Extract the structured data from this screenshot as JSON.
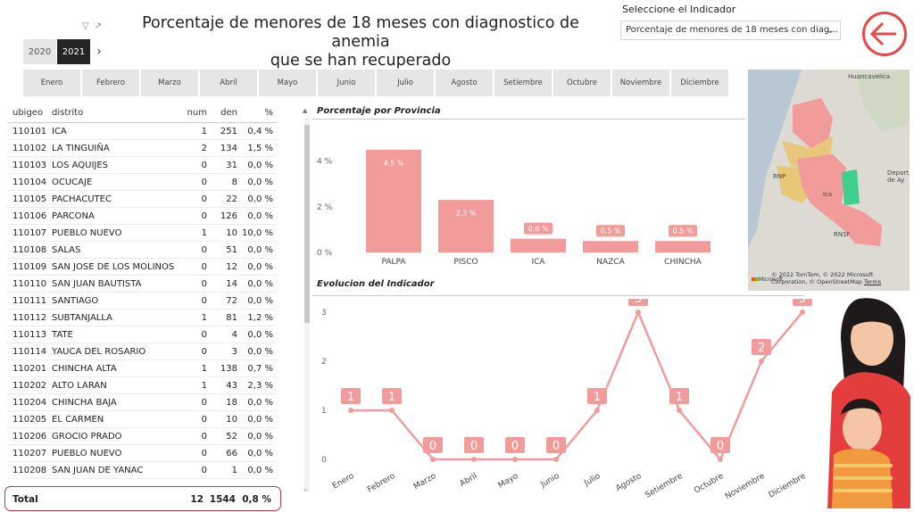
{
  "header": {
    "title_line1": "Porcentaje de menores de 18 meses con diagnostico de anemia",
    "title_line2": "que se han recuperado"
  },
  "years": {
    "options": [
      "2020",
      "2021"
    ],
    "selected": "2021"
  },
  "months": [
    "Enero",
    "Febrero",
    "Marzo",
    "Abril",
    "Mayo",
    "Junio",
    "Julio",
    "Agosto",
    "Setiembre",
    "Octubre",
    "Noviembre",
    "Diciembre"
  ],
  "indicator": {
    "label": "Seleccione el Indicador",
    "value": "Porcentaje de menores de 18 meses con diag..."
  },
  "table": {
    "columns": [
      "ubigeo",
      "distrito",
      "num",
      "den",
      "%"
    ],
    "rows": [
      [
        "110101",
        "ICA",
        "1",
        "251",
        "0,4 %"
      ],
      [
        "110102",
        "LA TINGUIÑA",
        "2",
        "134",
        "1,5 %"
      ],
      [
        "110103",
        "LOS AQUIJES",
        "0",
        "31",
        "0,0 %"
      ],
      [
        "110104",
        "OCUCAJE",
        "0",
        "8",
        "0,0 %"
      ],
      [
        "110105",
        "PACHACUTEC",
        "0",
        "22",
        "0,0 %"
      ],
      [
        "110106",
        "PARCONA",
        "0",
        "126",
        "0,0 %"
      ],
      [
        "110107",
        "PUEBLO NUEVO",
        "1",
        "10",
        "10,0 %"
      ],
      [
        "110108",
        "SALAS",
        "0",
        "51",
        "0,0 %"
      ],
      [
        "110109",
        "SAN JOSE DE LOS MOLINOS",
        "0",
        "12",
        "0,0 %"
      ],
      [
        "110110",
        "SAN JUAN BAUTISTA",
        "0",
        "14",
        "0,0 %"
      ],
      [
        "110111",
        "SANTIAGO",
        "0",
        "72",
        "0,0 %"
      ],
      [
        "110112",
        "SUBTANJALLA",
        "1",
        "81",
        "1,2 %"
      ],
      [
        "110113",
        "TATE",
        "0",
        "4",
        "0,0 %"
      ],
      [
        "110114",
        "YAUCA DEL ROSARIO",
        "0",
        "3",
        "0,0 %"
      ],
      [
        "110201",
        "CHINCHA ALTA",
        "1",
        "138",
        "0,7 %"
      ],
      [
        "110202",
        "ALTO LARAN",
        "1",
        "43",
        "2,3 %"
      ],
      [
        "110204",
        "CHINCHA BAJA",
        "0",
        "18",
        "0,0 %"
      ],
      [
        "110205",
        "EL CARMEN",
        "0",
        "10",
        "0,0 %"
      ],
      [
        "110206",
        "GROCIO PRADO",
        "0",
        "52",
        "0,0 %"
      ],
      [
        "110207",
        "PUEBLO NUEVO",
        "0",
        "66",
        "0,0 %"
      ],
      [
        "110208",
        "SAN JUAN DE YANAC",
        "0",
        "1",
        "0,0 %"
      ]
    ],
    "total": {
      "label": "Total",
      "num": "12",
      "den": "1544",
      "pct": "0,8 %"
    }
  },
  "chart_data": [
    {
      "type": "bar",
      "title": "Porcentaje por Provincia",
      "categories": [
        "PALPA",
        "PISCO",
        "ICA",
        "NAZCA",
        "CHINCHA"
      ],
      "values": [
        4.5,
        2.3,
        0.6,
        0.5,
        0.5
      ],
      "data_labels": [
        "4,5 %",
        "2,3 %",
        "0,6 %",
        "0,5 %",
        "0,5 %"
      ],
      "y_ticks": [
        "0 %",
        "2 %",
        "4 %"
      ],
      "ylim": [
        0,
        5
      ],
      "color": "#f29b9b"
    },
    {
      "type": "line",
      "title": "Evolucion del Indicador",
      "categories": [
        "Enero",
        "Febrero",
        "Marzo",
        "Abril",
        "Mayo",
        "Junio",
        "Julio",
        "Agosto",
        "Setiembre",
        "Octubre",
        "Noviembre",
        "Diciembre"
      ],
      "values": [
        1,
        1,
        0,
        0,
        0,
        0,
        1,
        3,
        1,
        0,
        2,
        3
      ],
      "y_ticks": [
        "0",
        "1",
        "2",
        "3"
      ],
      "ylim": [
        0,
        3
      ],
      "color": "#f29b9b"
    }
  ],
  "map": {
    "cities": [
      "Huancavelica",
      "RNP",
      "Ica",
      "RNSF",
      "Depart de Ay"
    ],
    "attribution": "© 2022 TomTom, © 2022 Microsoft Corporation, © OpenStreetMap",
    "terms": "Terms",
    "brand": "Microsoft"
  },
  "colors": {
    "accent": "#e34a4a",
    "bar": "#f29b9b",
    "selected_year": "#252423"
  }
}
